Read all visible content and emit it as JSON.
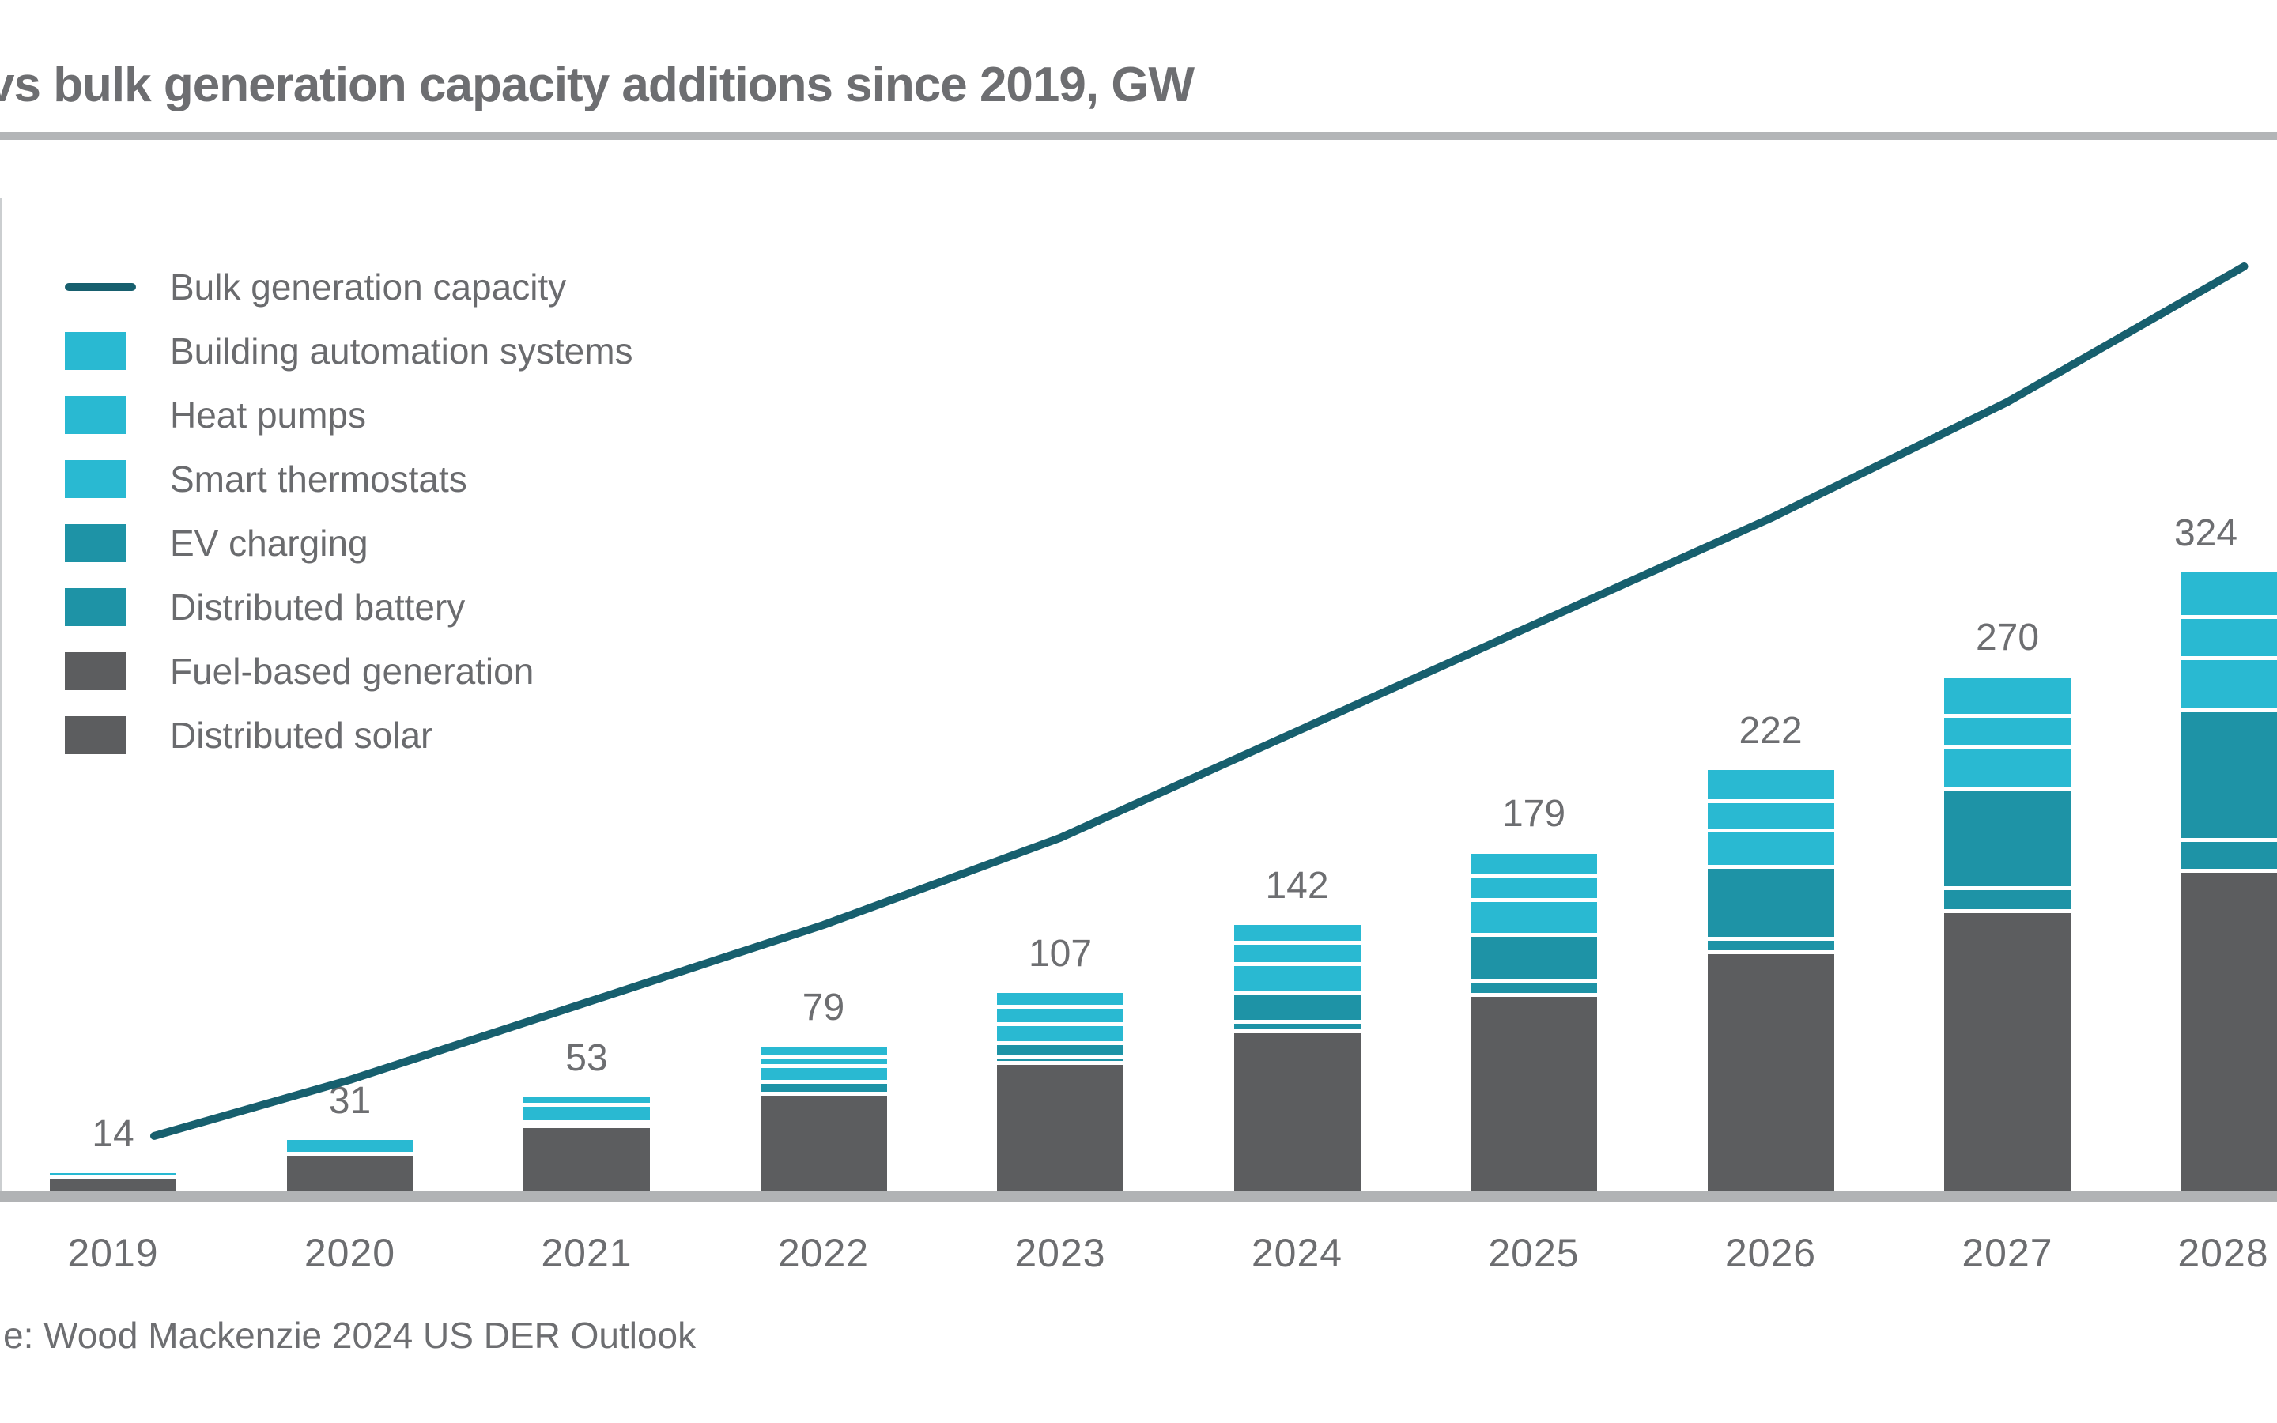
{
  "title": "vs bulk generation capacity additions since 2019, GW",
  "source_note": "e: Wood Mackenzie 2024 US DER Outlook",
  "unit": "GW",
  "colors": {
    "cyan": "#29b9d2",
    "teal": "#1e93a6",
    "gray": "#5c5d5f",
    "line": "#175f6e",
    "text": "#6d6e71",
    "axis": "#b1b3b5"
  },
  "legend": {
    "items": [
      {
        "label": "Bulk generation capacity",
        "type": "line",
        "color": "#175f6e"
      },
      {
        "label": "Building automation systems",
        "type": "box",
        "color": "#29b9d2"
      },
      {
        "label": "Heat pumps",
        "type": "box",
        "color": "#29b9d2"
      },
      {
        "label": "Smart thermostats",
        "type": "box",
        "color": "#29b9d2"
      },
      {
        "label": "EV charging",
        "type": "box",
        "color": "#1e93a6"
      },
      {
        "label": "Distributed battery",
        "type": "box",
        "color": "#1e93a6"
      },
      {
        "label": "Fuel-based generation",
        "type": "box",
        "color": "#5c5d5f"
      },
      {
        "label": "Distributed solar",
        "type": "box",
        "color": "#5c5d5f"
      }
    ]
  },
  "chart_data": {
    "type": "bar",
    "subtype": "stacked-bar-with-line",
    "categories": [
      "2019",
      "2020",
      "2021",
      "2022",
      "2023",
      "2024",
      "2025",
      "2026",
      "2027",
      "2028"
    ],
    "totals": [
      14,
      31,
      53,
      79,
      107,
      142,
      179,
      222,
      270,
      324
    ],
    "series": [
      {
        "name": "Distributed solar",
        "color": "#5c5d5f",
        "values": [
          5,
          10,
          17,
          27,
          38,
          46,
          57,
          73,
          79,
          86
        ]
      },
      {
        "name": "Fuel-based generation",
        "color": "#5c5d5f",
        "values": [
          6,
          13,
          20,
          27,
          32,
          40,
          48,
          54,
          69,
          83
        ]
      },
      {
        "name": "Distributed battery",
        "color": "#1e93a6",
        "values": [
          0,
          0,
          0,
          0,
          3,
          5,
          7,
          7,
          12,
          16
        ]
      },
      {
        "name": "EV charging",
        "color": "#1e93a6",
        "values": [
          0,
          0,
          2,
          6,
          7,
          15,
          24,
          37,
          51,
          67
        ]
      },
      {
        "name": "Smart thermostats",
        "color": "#29b9d2",
        "values": [
          3,
          8,
          9,
          8,
          10,
          15,
          18,
          19,
          22,
          27
        ]
      },
      {
        "name": "Heat pumps",
        "color": "#29b9d2",
        "values": [
          0,
          0,
          5,
          5,
          9,
          11,
          12,
          15,
          16,
          21
        ]
      },
      {
        "name": "Building automation systems",
        "color": "#29b9d2",
        "values": [
          0,
          0,
          0,
          6,
          8,
          10,
          13,
          17,
          21,
          24
        ]
      }
    ],
    "line_series": {
      "name": "Bulk generation capacity",
      "color": "#175f6e",
      "values": [
        25,
        60,
        100,
        140,
        185,
        240,
        295,
        350,
        410,
        480
      ]
    },
    "title": "vs bulk generation capacity additions since 2019, GW",
    "xlabel": "",
    "ylabel": "GW",
    "grid": false,
    "legend_position": "top-left-inside",
    "bar_value_labels": "totals-above-bars"
  }
}
